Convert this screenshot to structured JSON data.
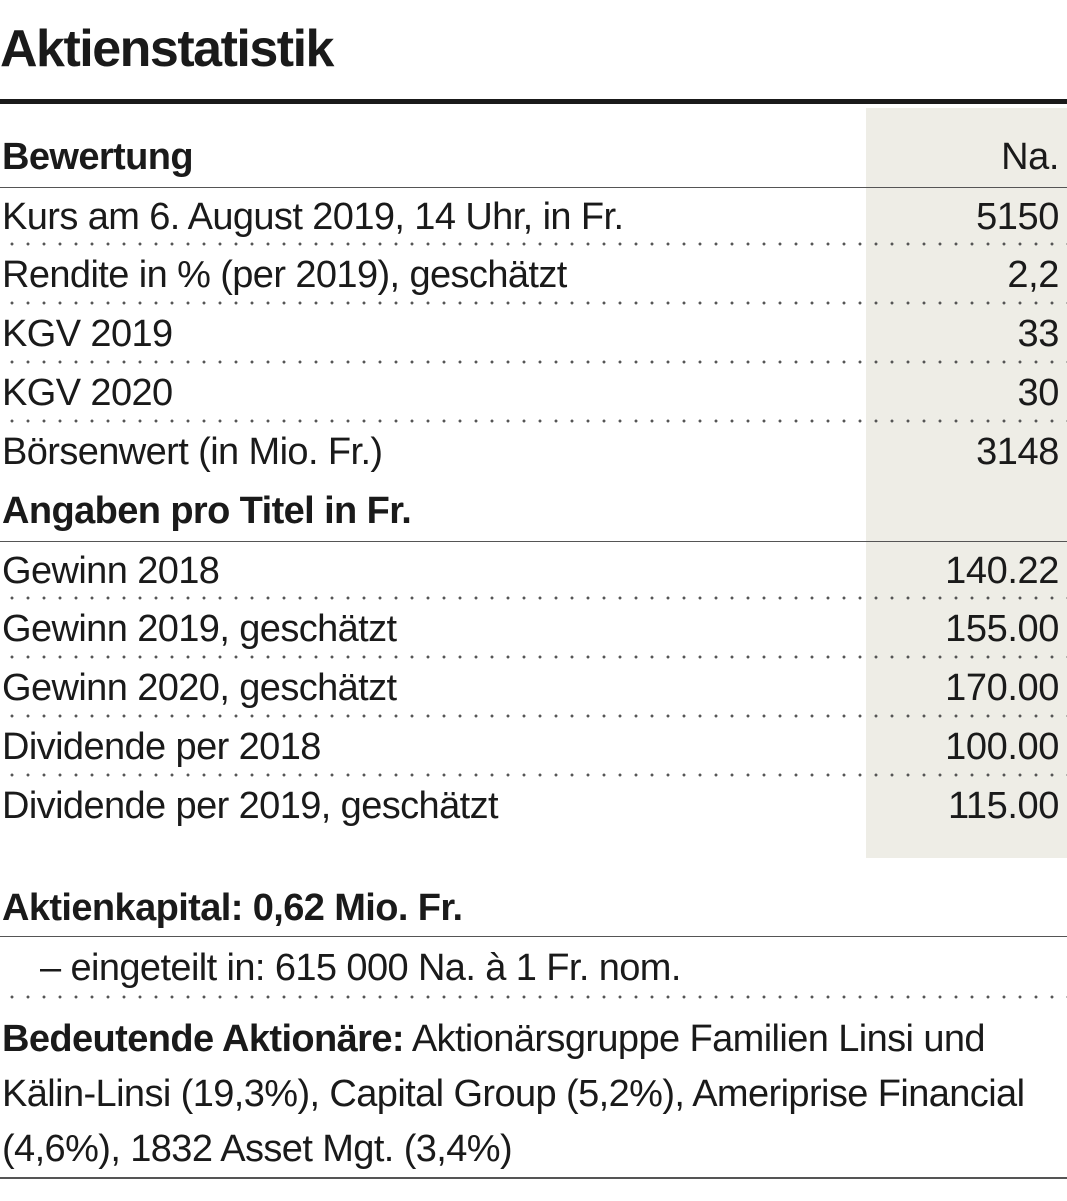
{
  "title": "Aktienstatistik",
  "bewertung": {
    "heading": "Bewertung",
    "column_label": "Na.",
    "rows": [
      {
        "label": "Kurs am 6. August 2019, 14 Uhr, in Fr.",
        "value": "5150"
      },
      {
        "label": "Rendite in % (per 2019), geschätzt",
        "value": "2,2"
      },
      {
        "label": "KGV 2019",
        "value": "33"
      },
      {
        "label": "KGV 2020",
        "value": "30"
      },
      {
        "label": "Börsenwert (in Mio. Fr.)",
        "value": "3148"
      }
    ]
  },
  "pro_titel": {
    "heading": "Angaben pro Titel in Fr.",
    "rows": [
      {
        "label": "Gewinn 2018",
        "value": "140.22"
      },
      {
        "label": "Gewinn 2019, geschätzt",
        "value": "155.00"
      },
      {
        "label": "Gewinn 2020, geschätzt",
        "value": "170.00"
      },
      {
        "label": "Dividende per 2018",
        "value": "100.00"
      },
      {
        "label": "Dividende per 2019, geschätzt",
        "value": "115.00"
      }
    ]
  },
  "aktienkapital": {
    "heading": "Aktienkapital: 0,62 Mio. Fr.",
    "detail": "– eingeteilt in: 615 000 Na. à 1 Fr. nom."
  },
  "aktionaere": {
    "label": "Bedeutende Aktionäre:",
    "text": " Aktionärsgruppe Familien Linsi und Kälin-Linsi (19,3%), Capital Group (5,2%), Ameriprise Financial (4,6%), 1832 Asset Mgt. (3,4%)"
  },
  "colors": {
    "text": "#1a1a1a",
    "shade": "#eeede6",
    "rule": "#555555"
  }
}
